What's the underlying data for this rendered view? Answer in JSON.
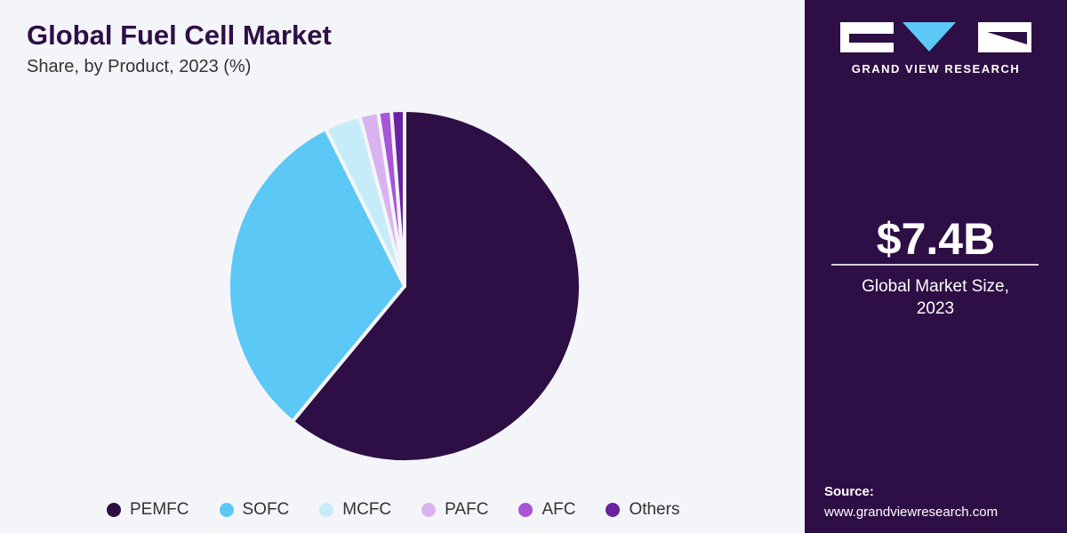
{
  "chart_data": {
    "type": "pie",
    "title": "Global Fuel Cell Market",
    "subtitle": "Share, by Product, 2023 (%)",
    "categories": [
      "PEMFC",
      "SOFC",
      "MCFC",
      "PAFC",
      "AFC",
      "Others"
    ],
    "values": [
      61,
      31.6,
      3.3,
      1.7,
      1.2,
      1.2
    ],
    "colors": [
      "#2e0f45",
      "#5bc8f5",
      "#c6ecfa",
      "#d9b3ef",
      "#a855d8",
      "#6a22a0"
    ],
    "legend": "bottom"
  },
  "panel": {
    "brand": "GRAND VIEW RESEARCH",
    "market_size": "$7.4B",
    "market_size_label": "Global Market Size, 2023",
    "source_label": "Source:",
    "source_url": "www.grandviewresearch.com"
  }
}
